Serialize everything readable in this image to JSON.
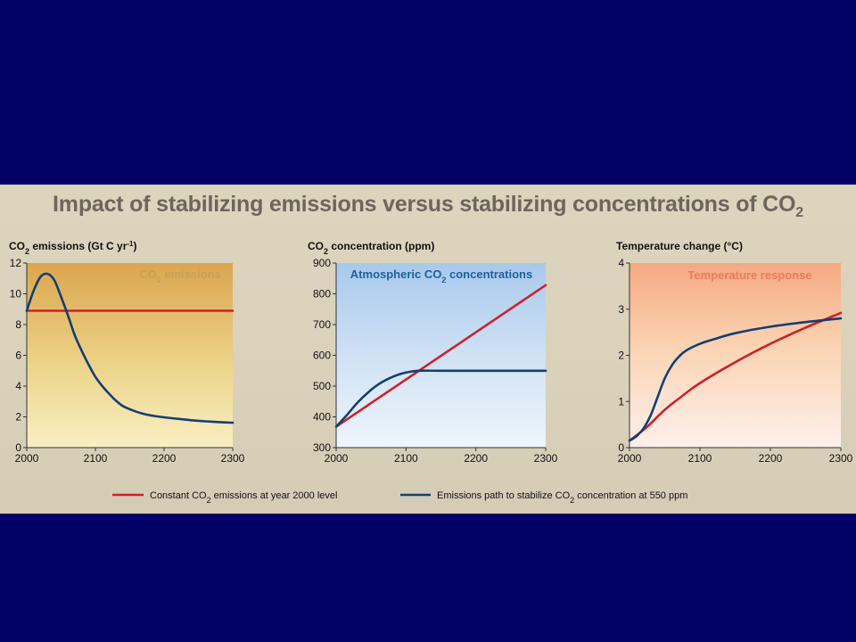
{
  "title": {
    "main": "Impact of stabilizing emissions versus stabilizing concentrations of CO",
    "sub": "2"
  },
  "colors": {
    "background": "#000066",
    "constant_series": "#cc2229",
    "stabilize_series": "#133f73"
  },
  "legend": {
    "constant": {
      "pre": "Constant CO",
      "sub": "2",
      "post": " emissions at year 2000 level"
    },
    "stabilize": {
      "pre": "Emissions path to stabilize CO",
      "sub": "2",
      "post": " concentration at 550 ppm"
    }
  },
  "chart_data": [
    {
      "type": "line",
      "title_pre": "CO",
      "title_sub": "2",
      "title_post": " emissions (Gt C yr",
      "title_sup": "-1",
      "title_end": ")",
      "inner_label_pre": "CO",
      "inner_label_sub": "2",
      "inner_label_post": " emissions",
      "inner_label_color": "#c7a154",
      "xlim": [
        2000,
        2300
      ],
      "ylim": [
        0,
        12
      ],
      "xticks": [
        2000,
        2100,
        2200,
        2300
      ],
      "yticks": [
        0,
        2,
        4,
        6,
        8,
        10,
        12
      ],
      "series": [
        {
          "color": "#cc2229",
          "x": [
            2000,
            2300
          ],
          "y": [
            8.9,
            8.9
          ]
        },
        {
          "color": "#133f73",
          "x": [
            2000,
            2010,
            2020,
            2030,
            2040,
            2050,
            2060,
            2070,
            2080,
            2090,
            2100,
            2110,
            2120,
            2130,
            2140,
            2150,
            2160,
            2170,
            2180,
            2190,
            2200,
            2220,
            2240,
            2260,
            2280,
            2300
          ],
          "y": [
            8.9,
            10.2,
            11.1,
            11.3,
            10.9,
            9.8,
            8.6,
            7.3,
            6.3,
            5.4,
            4.6,
            4.0,
            3.5,
            3.05,
            2.7,
            2.5,
            2.33,
            2.2,
            2.1,
            2.03,
            1.97,
            1.87,
            1.78,
            1.71,
            1.66,
            1.62
          ]
        }
      ]
    },
    {
      "type": "line",
      "title_pre": "CO",
      "title_sub": "2",
      "title_post": " concentration (ppm)",
      "title_sup": "",
      "title_end": "",
      "inner_label_pre": "Atmospheric CO",
      "inner_label_sub": "2",
      "inner_label_post": " concentrations",
      "inner_label_color": "#1f5fa4",
      "xlim": [
        2000,
        2300
      ],
      "ylim": [
        300,
        900
      ],
      "xticks": [
        2000,
        2100,
        2200,
        2300
      ],
      "yticks": [
        300,
        400,
        500,
        600,
        700,
        800,
        900
      ],
      "series": [
        {
          "color": "#cc2229",
          "x": [
            2000,
            2300
          ],
          "y": [
            368,
            828
          ]
        },
        {
          "color": "#133f73",
          "x": [
            2000,
            2015,
            2030,
            2045,
            2060,
            2075,
            2090,
            2100,
            2110,
            2120,
            2150,
            2200,
            2250,
            2300
          ],
          "y": [
            368,
            405,
            445,
            478,
            505,
            524,
            538,
            544,
            548,
            550,
            550,
            550,
            550,
            550
          ]
        }
      ]
    },
    {
      "type": "line",
      "title_pre": "Temperature change (°C)",
      "title_sub": "",
      "title_post": "",
      "title_sup": "",
      "title_end": "",
      "inner_label_pre": "Temperature response",
      "inner_label_sub": "",
      "inner_label_post": "",
      "inner_label_color": "#ee7a59",
      "xlim": [
        2000,
        2300
      ],
      "ylim": [
        0,
        4
      ],
      "xticks": [
        2000,
        2100,
        2200,
        2300
      ],
      "yticks": [
        0,
        1,
        2,
        3,
        4
      ],
      "series": [
        {
          "color": "#cc2229",
          "x": [
            2000,
            2025,
            2050,
            2075,
            2100,
            2150,
            2200,
            2250,
            2300
          ],
          "y": [
            0.15,
            0.45,
            0.82,
            1.12,
            1.4,
            1.85,
            2.25,
            2.6,
            2.92
          ]
        },
        {
          "color": "#133f73",
          "x": [
            2000,
            2010,
            2020,
            2030,
            2040,
            2050,
            2060,
            2070,
            2080,
            2100,
            2120,
            2150,
            2200,
            2250,
            2300
          ],
          "y": [
            0.15,
            0.25,
            0.42,
            0.7,
            1.1,
            1.5,
            1.78,
            1.97,
            2.1,
            2.25,
            2.35,
            2.48,
            2.62,
            2.72,
            2.8
          ]
        }
      ]
    }
  ]
}
